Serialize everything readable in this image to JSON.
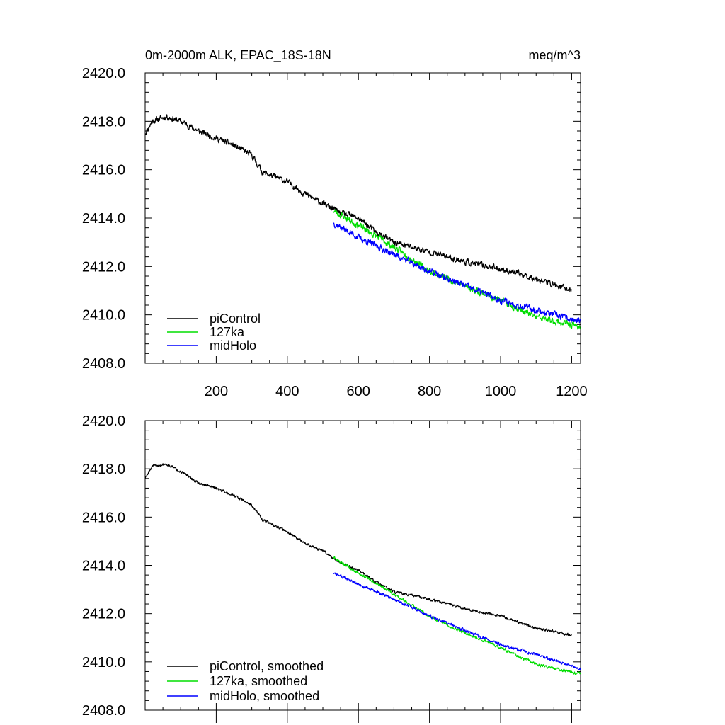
{
  "chart_data": [
    {
      "type": "line",
      "title": "0m-2000m ALK, EPAC_18S-18N",
      "units": "meq/m^3",
      "xlabel": "",
      "ylabel": "",
      "xlim": [
        0,
        1225
      ],
      "ylim": [
        2408,
        2420
      ],
      "xticks": [
        200,
        400,
        600,
        800,
        1000,
        1200
      ],
      "xtick_labels": [
        "200",
        "400",
        "600",
        "800",
        "1000",
        "1200"
      ],
      "yticks": [
        2408,
        2410,
        2412,
        2414,
        2416,
        2418,
        2420
      ],
      "ytick_labels": [
        "2408.0",
        "2410.0",
        "2412.0",
        "2414.0",
        "2416.0",
        "2418.0",
        "2420.0"
      ],
      "legend_position": "bottom-left",
      "series": [
        {
          "name": "piControl",
          "color": "#000000",
          "noise": 0.2,
          "seed": 11,
          "x": [
            0,
            20,
            60,
            100,
            150,
            200,
            250,
            300,
            330,
            400,
            450,
            500,
            550,
            600,
            650,
            700,
            800,
            900,
            1000,
            1100,
            1200
          ],
          "values": [
            2417.5,
            2418.0,
            2418.2,
            2418.0,
            2417.6,
            2417.3,
            2417.0,
            2416.6,
            2415.9,
            2415.5,
            2415.0,
            2414.6,
            2414.2,
            2414.0,
            2413.4,
            2413.0,
            2412.6,
            2412.2,
            2411.9,
            2411.5,
            2411.0
          ]
        },
        {
          "name": "127ka",
          "color": "#00dd00",
          "noise": 0.22,
          "seed": 23,
          "x": [
            530,
            600,
            700,
            800,
            900,
            1000,
            1100,
            1225
          ],
          "values": [
            2414.3,
            2413.7,
            2412.8,
            2411.8,
            2411.2,
            2410.6,
            2409.9,
            2409.5
          ]
        },
        {
          "name": "midHolo",
          "color": "#0000ff",
          "noise": 0.22,
          "seed": 37,
          "x": [
            530,
            600,
            700,
            800,
            900,
            1000,
            1100,
            1225
          ],
          "values": [
            2413.8,
            2413.2,
            2412.5,
            2411.8,
            2411.2,
            2410.6,
            2410.2,
            2409.7
          ]
        }
      ]
    },
    {
      "type": "line",
      "title": "",
      "xlim": [
        0,
        1225
      ],
      "ylim": [
        2408,
        2420
      ],
      "xticks": [
        200,
        400,
        600,
        800,
        1000,
        1200
      ],
      "xtick_labels": [],
      "yticks": [
        2408,
        2410,
        2412,
        2414,
        2416,
        2418,
        2420
      ],
      "ytick_labels": [
        "2408.0",
        "2410.0",
        "2412.0",
        "2414.0",
        "2416.0",
        "2418.0",
        "2420.0"
      ],
      "legend_position": "bottom-left",
      "series": [
        {
          "name": "piControl, smoothed",
          "color": "#000000",
          "noise": 0.09,
          "seed": 51,
          "x": [
            0,
            20,
            60,
            100,
            150,
            200,
            250,
            300,
            330,
            400,
            450,
            500,
            550,
            600,
            650,
            700,
            800,
            900,
            1000,
            1100,
            1200
          ],
          "values": [
            2417.6,
            2418.1,
            2418.2,
            2417.9,
            2417.4,
            2417.2,
            2416.9,
            2416.5,
            2415.9,
            2415.4,
            2414.9,
            2414.6,
            2414.1,
            2413.8,
            2413.3,
            2412.9,
            2412.6,
            2412.2,
            2411.9,
            2411.4,
            2411.1
          ]
        },
        {
          "name": "127ka, smoothed",
          "color": "#00dd00",
          "noise": 0.1,
          "seed": 63,
          "x": [
            530,
            600,
            700,
            800,
            900,
            1000,
            1100,
            1225
          ],
          "values": [
            2414.3,
            2413.7,
            2412.8,
            2411.9,
            2411.2,
            2410.6,
            2409.9,
            2409.5
          ]
        },
        {
          "name": "midHolo, smoothed",
          "color": "#0000ff",
          "noise": 0.1,
          "seed": 77,
          "x": [
            530,
            600,
            700,
            800,
            900,
            1000,
            1100,
            1225
          ],
          "values": [
            2413.7,
            2413.2,
            2412.6,
            2411.9,
            2411.3,
            2410.7,
            2410.3,
            2409.7
          ]
        }
      ]
    }
  ]
}
